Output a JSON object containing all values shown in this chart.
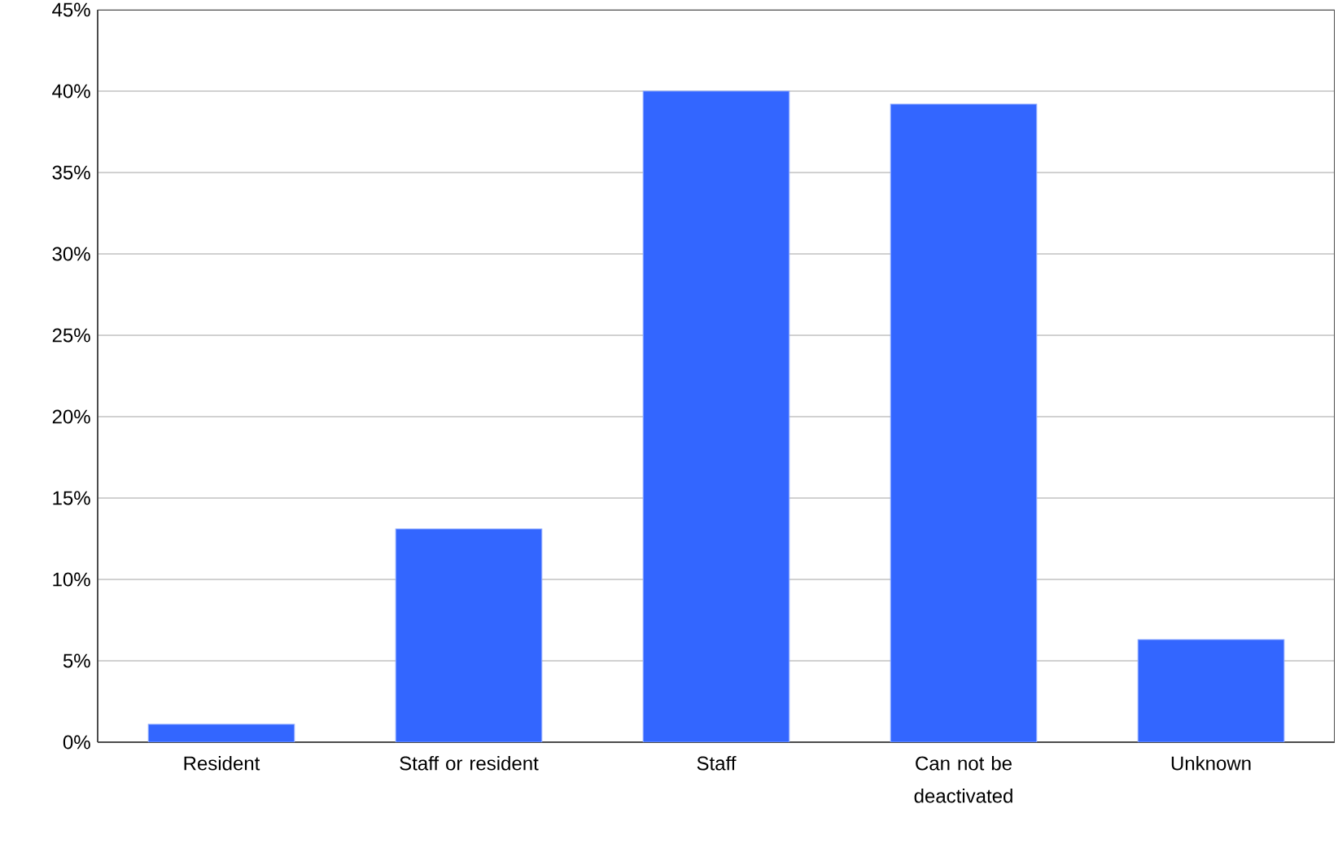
{
  "chart_data": {
    "type": "bar",
    "categories": [
      "Resident",
      "Staff or resident",
      "Staff",
      "Can not be deactivated",
      "Unknown"
    ],
    "values": [
      1.1,
      13.1,
      40.0,
      39.2,
      6.3
    ],
    "color": "#3366ff",
    "ylim": [
      0,
      45
    ],
    "yticks": [
      {
        "value": 0,
        "label": "0%"
      },
      {
        "value": 5,
        "label": "5%"
      },
      {
        "value": 10,
        "label": "10%"
      },
      {
        "value": 15,
        "label": "15%"
      },
      {
        "value": 20,
        "label": "20%"
      },
      {
        "value": 25,
        "label": "25%"
      },
      {
        "value": 30,
        "label": "30%"
      },
      {
        "value": 35,
        "label": "35%"
      },
      {
        "value": 40,
        "label": "40%"
      },
      {
        "value": 45,
        "label": "45%"
      }
    ],
    "grid": "y"
  }
}
